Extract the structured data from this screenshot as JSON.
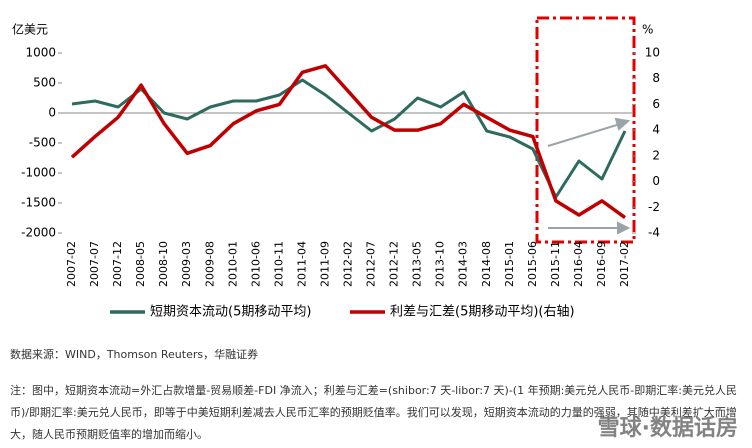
{
  "chart_data": {
    "type": "line",
    "y_label": "亿美元",
    "y2_label": "%",
    "categories": [
      "2007-02",
      "2007-07",
      "2007-12",
      "2008-05",
      "2008-10",
      "2009-03",
      "2009-08",
      "2010-01",
      "2010-06",
      "2010-11",
      "2011-04",
      "2011-09",
      "2012-02",
      "2012-07",
      "2012-12",
      "2013-05",
      "2013-10",
      "2014-03",
      "2014-08",
      "2015-01",
      "2015-06",
      "2015-11",
      "2016-04",
      "2016-09",
      "2017-02"
    ],
    "series": [
      {
        "name": "短期资本流动(5期移动平均)",
        "color": "#2e6b5e",
        "axis": "y",
        "values": [
          150,
          200,
          100,
          400,
          0,
          -100,
          100,
          200,
          200,
          300,
          550,
          300,
          0,
          -300,
          -100,
          250,
          100,
          350,
          -300,
          -400,
          -600,
          -1400,
          -800,
          -1100,
          -300
        ]
      },
      {
        "name": "利差与汇差(5期移动平均)(右轴)",
        "color": "#c00000",
        "axis": "y2",
        "values": [
          1.9,
          3.5,
          5.0,
          7.5,
          4.5,
          2.2,
          2.8,
          4.5,
          5.5,
          6,
          8.5,
          9.0,
          7,
          5,
          4,
          4,
          4.5,
          6,
          5,
          4,
          3.5,
          -1.5,
          -2.6,
          -1.5,
          -2.8
        ]
      }
    ],
    "ylim": [
      -2000,
      1000
    ],
    "yticks": [
      -2000,
      -1500,
      -1000,
      -500,
      0,
      500,
      1000
    ],
    "y2lim": [
      -4,
      10
    ],
    "y2ticks": [
      -4,
      -2,
      0,
      2,
      4,
      6,
      8,
      10
    ]
  },
  "source": "数据来源：WIND，Thomson Reuters，华融证券",
  "note": "注：图中，短期资本流动=外汇占款增量-贸易顺差-FDI 净流入；利差与汇差=(shibor:7 天-libor:7 天)-(1 年预期:美元兑人民币-即期汇率:美元兑人民币)/即期汇率:美元兑人民币，即等于中美短期利差减去人民币汇率的预期贬值率。我们可以发现，短期资本流动的力量的强弱，其随中美利差扩大而增大，随人民币预期贬值率的增加而缩小。",
  "watermark": "雪球·数据话房"
}
